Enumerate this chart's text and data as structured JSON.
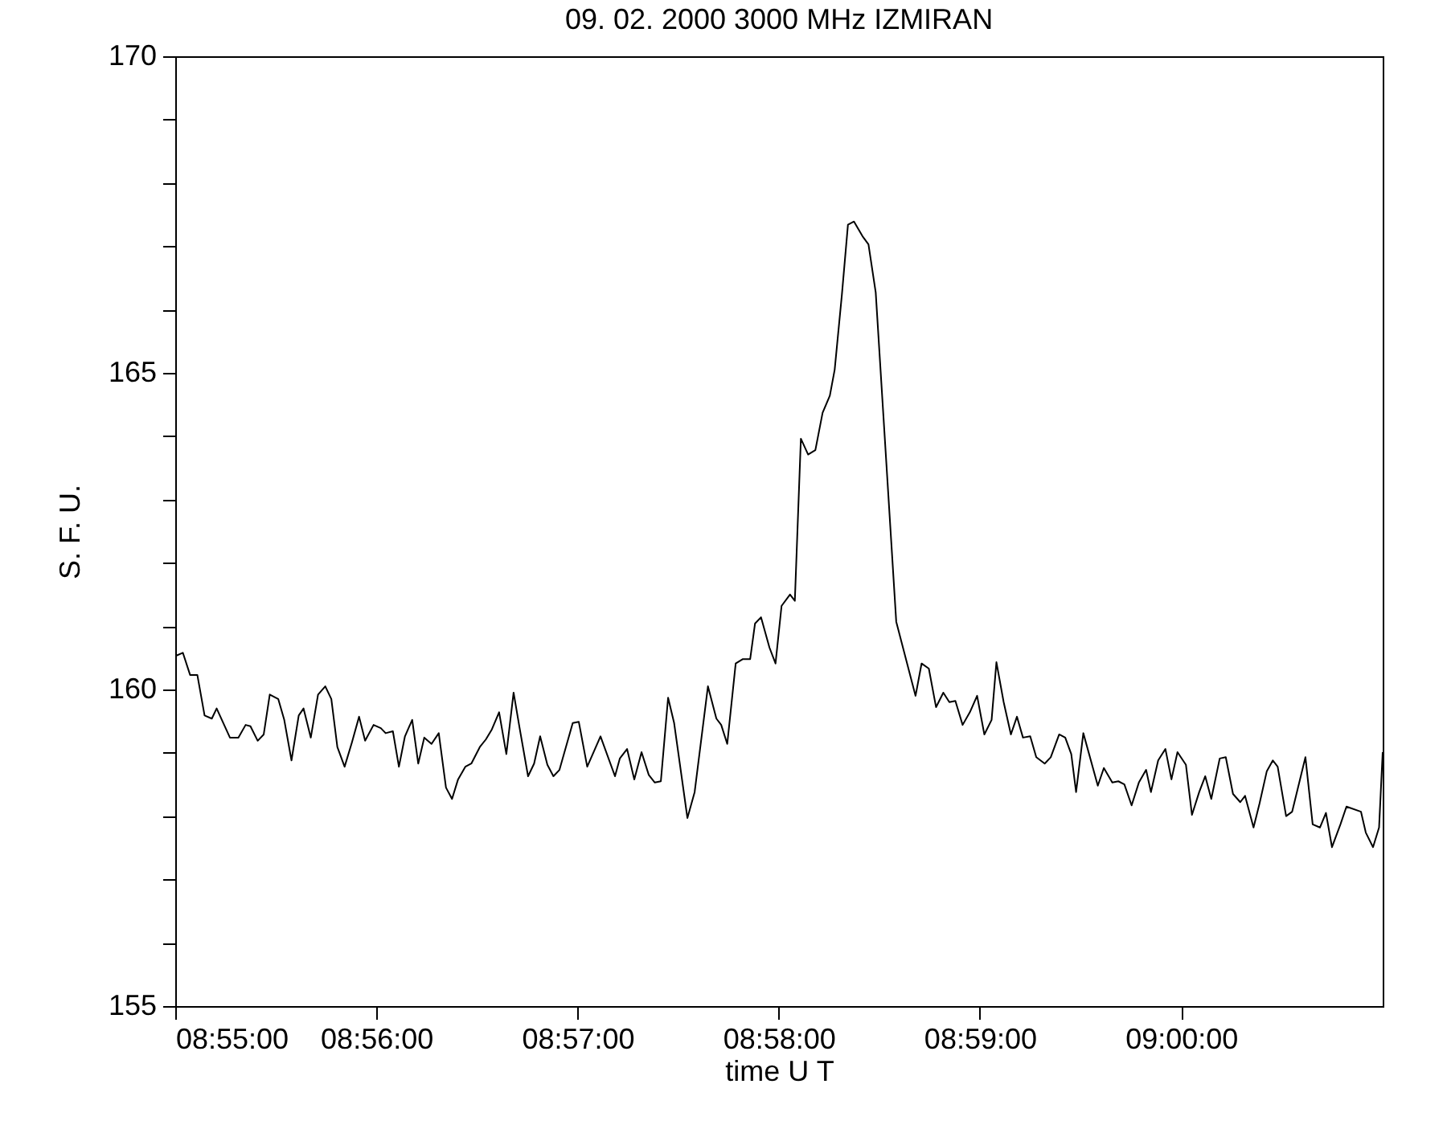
{
  "chart_data": {
    "type": "line",
    "title": "09.  02.  2000    3000  MHz    IZMIRAN",
    "xlabel": "time   U T",
    "ylabel": "S.  F.  U.",
    "x": [
      8.9167,
      8.9173,
      8.9179,
      8.9185,
      8.9191,
      8.9197,
      8.9201,
      8.9212,
      8.9219,
      8.9225,
      8.9229,
      8.9235,
      8.924,
      8.9245,
      8.9252,
      8.9257,
      8.9263,
      8.9269,
      8.9273,
      8.9279,
      8.9285,
      8.9291,
      8.9296,
      8.9301,
      8.9307,
      8.9313,
      8.9319,
      8.9324,
      8.9331,
      8.9337,
      8.9341,
      8.9347,
      8.9352,
      8.9357,
      8.9363,
      8.9368,
      8.9373,
      8.9379,
      8.9385,
      8.9391,
      8.9396,
      8.9401,
      8.9407,
      8.9412,
      8.9419,
      8.9424,
      8.9429,
      8.9435,
      8.9441,
      8.9447,
      8.9452,
      8.9459,
      8.9464,
      8.9469,
      8.9475,
      8.948,
      8.9485,
      8.9496,
      8.9501,
      8.9508,
      8.9519,
      8.9531,
      8.9535,
      8.9541,
      8.9547,
      8.9553,
      8.9559,
      8.9564,
      8.9569,
      8.9575,
      8.958,
      8.9591,
      8.9597,
      8.9608,
      8.9615,
      8.9619,
      8.9624,
      8.9631,
      8.9637,
      8.9643,
      8.9647,
      8.9652,
      8.9659,
      8.9664,
      8.9669,
      8.9676,
      8.968,
      8.9685,
      8.9691,
      8.9697,
      8.9703,
      8.9709,
      8.9713,
      8.9719,
      8.9724,
      8.9729,
      8.9736,
      8.9741,
      8.9747,
      8.9764,
      8.978,
      8.9785,
      8.9791,
      8.9797,
      8.9803,
      8.9808,
      8.9813,
      8.9819,
      8.9825,
      8.9831,
      8.9837,
      8.9843,
      8.9847,
      8.9853,
      8.9859,
      8.9864,
      8.9869,
      8.9875,
      8.988,
      8.9887,
      8.9892,
      8.9899,
      8.9904,
      8.9909,
      8.9913,
      8.9919,
      8.9931,
      8.9936,
      8.9943,
      8.9948,
      8.9953,
      8.9959,
      8.9965,
      8.9971,
      8.9975,
      8.9981,
      8.9987,
      8.9992,
      8.9997,
      9.0004,
      9.0009,
      9.0015,
      9.002,
      9.0025,
      9.0032,
      9.0037,
      9.0043,
      9.0049,
      9.0053,
      9.006,
      9.0065,
      9.0071,
      9.0076,
      9.008,
      9.0087,
      9.0092,
      9.0103,
      9.0109,
      9.0115,
      9.012,
      9.0125,
      9.0132,
      9.0137,
      9.0149,
      9.0153,
      9.0159,
      9.0164,
      9.0167
    ],
    "series": [
      {
        "color": "#000000",
        "values": [
          160.53,
          160.58,
          160.23,
          160.23,
          159.59,
          159.54,
          159.7,
          159.24,
          159.24,
          159.44,
          159.42,
          159.19,
          159.29,
          159.92,
          159.85,
          159.52,
          158.88,
          159.59,
          159.7,
          159.24,
          159.92,
          160.05,
          159.85,
          159.09,
          158.78,
          159.16,
          159.57,
          159.19,
          159.44,
          159.39,
          159.31,
          159.34,
          158.78,
          159.26,
          159.52,
          158.83,
          159.24,
          159.14,
          159.31,
          158.45,
          158.27,
          158.58,
          158.78,
          158.83,
          159.09,
          159.21,
          159.37,
          159.64,
          158.98,
          159.95,
          159.39,
          158.63,
          158.83,
          159.26,
          158.81,
          158.63,
          158.73,
          159.47,
          159.49,
          158.78,
          159.26,
          158.63,
          158.91,
          159.06,
          158.58,
          159.01,
          158.65,
          158.53,
          158.55,
          159.87,
          159.47,
          157.97,
          158.38,
          160.05,
          159.54,
          159.44,
          159.14,
          160.41,
          160.48,
          160.48,
          161.04,
          161.14,
          160.66,
          160.41,
          161.32,
          161.5,
          161.4,
          163.96,
          163.71,
          163.78,
          164.37,
          164.64,
          165.05,
          166.24,
          167.34,
          167.39,
          167.16,
          167.03,
          166.27,
          161.07,
          159.9,
          160.41,
          160.33,
          159.72,
          159.95,
          159.8,
          159.82,
          159.44,
          159.64,
          159.9,
          159.29,
          159.52,
          160.43,
          159.8,
          159.29,
          159.57,
          159.24,
          159.26,
          158.93,
          158.83,
          158.93,
          159.29,
          159.24,
          158.98,
          158.38,
          159.31,
          158.48,
          158.76,
          158.53,
          158.55,
          158.5,
          158.17,
          158.53,
          158.73,
          158.38,
          158.88,
          159.06,
          158.58,
          159.01,
          158.81,
          158.02,
          158.38,
          158.63,
          158.27,
          158.91,
          158.93,
          158.35,
          158.22,
          158.32,
          157.82,
          158.2,
          158.71,
          158.88,
          158.78,
          158,
          158.07,
          158.93,
          157.87,
          157.82,
          158.05,
          157.51,
          157.87,
          158.15,
          158.07,
          157.74,
          157.51,
          157.82,
          159.01
        ]
      }
    ],
    "xlim": [
      8.91667,
      9.0167
    ],
    "xticks": [
      {
        "value": 8.91667,
        "label": "08:55:00"
      },
      {
        "value": 8.93333,
        "label": "08:56:00"
      },
      {
        "value": 8.95,
        "label": "08:57:00"
      },
      {
        "value": 8.96667,
        "label": "08:58:00"
      },
      {
        "value": 8.98333,
        "label": "08:59:00"
      },
      {
        "value": 9.0,
        "label": "09:00:00"
      }
    ],
    "ylim": [
      155,
      170
    ],
    "yticks": [
      155,
      {
        "value": 156,
        "label": null
      },
      {
        "value": 157,
        "label": null
      },
      {
        "value": 158,
        "label": null
      },
      {
        "value": 159,
        "label": null
      },
      160,
      {
        "value": 161,
        "label": null
      },
      {
        "value": 162,
        "label": null
      },
      {
        "value": 163,
        "label": null
      },
      {
        "value": 164,
        "label": null
      },
      165,
      {
        "value": 166,
        "label": null
      },
      {
        "value": 167,
        "label": null
      },
      {
        "value": 168,
        "label": null
      },
      {
        "value": 169,
        "label": null
      },
      170
    ],
    "grid": false,
    "marker": "none",
    "line_style": "solid"
  }
}
